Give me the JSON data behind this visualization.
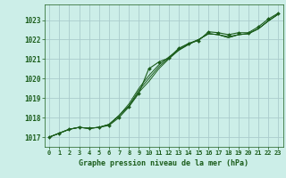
{
  "title": "Graphe pression niveau de la mer (hPa)",
  "background_color": "#cceee8",
  "grid_color": "#aacccc",
  "line_color": "#1a5c1a",
  "marker_color": "#1a5c1a",
  "xlim": [
    -0.5,
    23.5
  ],
  "ylim": [
    1016.5,
    1023.8
  ],
  "yticks": [
    1017,
    1018,
    1019,
    1020,
    1021,
    1022,
    1023
  ],
  "xticks": [
    0,
    1,
    2,
    3,
    4,
    5,
    6,
    7,
    8,
    9,
    10,
    11,
    12,
    13,
    14,
    15,
    16,
    17,
    18,
    19,
    20,
    21,
    22,
    23
  ],
  "series_main": [
    1017.0,
    1017.2,
    1017.4,
    1017.5,
    1017.45,
    1017.5,
    1017.6,
    1018.0,
    1018.55,
    1019.25,
    1020.5,
    1020.85,
    1021.05,
    1021.55,
    1021.8,
    1021.95,
    1022.4,
    1022.35,
    1022.25,
    1022.35,
    1022.35,
    1022.65,
    1023.05,
    1023.35
  ],
  "series_smooth1": [
    1017.0,
    1017.2,
    1017.4,
    1017.5,
    1017.45,
    1017.5,
    1017.65,
    1018.1,
    1018.7,
    1019.5,
    1020.15,
    1020.7,
    1021.1,
    1021.5,
    1021.8,
    1022.0,
    1022.3,
    1022.25,
    1022.15,
    1022.25,
    1022.3,
    1022.55,
    1022.95,
    1023.3
  ],
  "series_smooth2": [
    1017.0,
    1017.2,
    1017.4,
    1017.5,
    1017.45,
    1017.5,
    1017.65,
    1018.1,
    1018.6,
    1019.4,
    1020.0,
    1020.6,
    1021.05,
    1021.45,
    1021.75,
    1022.0,
    1022.3,
    1022.25,
    1022.1,
    1022.25,
    1022.3,
    1022.55,
    1022.95,
    1023.3
  ],
  "series_smooth3": [
    1017.0,
    1017.2,
    1017.4,
    1017.5,
    1017.45,
    1017.5,
    1017.65,
    1018.1,
    1018.6,
    1019.3,
    1019.85,
    1020.5,
    1021.0,
    1021.45,
    1021.75,
    1022.0,
    1022.3,
    1022.25,
    1022.1,
    1022.25,
    1022.3,
    1022.55,
    1022.95,
    1023.3
  ],
  "x_hours": [
    0,
    1,
    2,
    3,
    4,
    5,
    6,
    7,
    8,
    9,
    10,
    11,
    12,
    13,
    14,
    15,
    16,
    17,
    18,
    19,
    20,
    21,
    22,
    23
  ]
}
